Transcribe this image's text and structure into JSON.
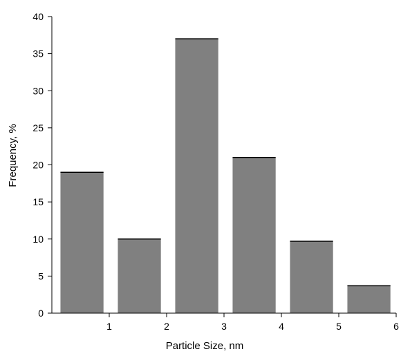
{
  "chart_data": {
    "type": "bar",
    "title": "",
    "xlabel": "Particle Size, nm",
    "ylabel": "Frequency, %",
    "xlim": [
      0,
      6
    ],
    "ylim": [
      0,
      40
    ],
    "x_ticks": [
      1,
      2,
      3,
      4,
      5,
      6
    ],
    "y_ticks": [
      0,
      5,
      10,
      15,
      20,
      25,
      30,
      35,
      40
    ],
    "grid": false,
    "legend": "none",
    "bars": [
      {
        "x_start": 0.15,
        "x_end": 0.9,
        "value": 19
      },
      {
        "x_start": 1.15,
        "x_end": 1.9,
        "value": 10
      },
      {
        "x_start": 2.15,
        "x_end": 2.9,
        "value": 37
      },
      {
        "x_start": 3.15,
        "x_end": 3.9,
        "value": 21
      },
      {
        "x_start": 4.15,
        "x_end": 4.9,
        "value": 9.7
      },
      {
        "x_start": 5.15,
        "x_end": 5.9,
        "value": 3.7
      }
    ],
    "colors": {
      "bar": "#808080",
      "bar_edge": "#000000"
    }
  }
}
